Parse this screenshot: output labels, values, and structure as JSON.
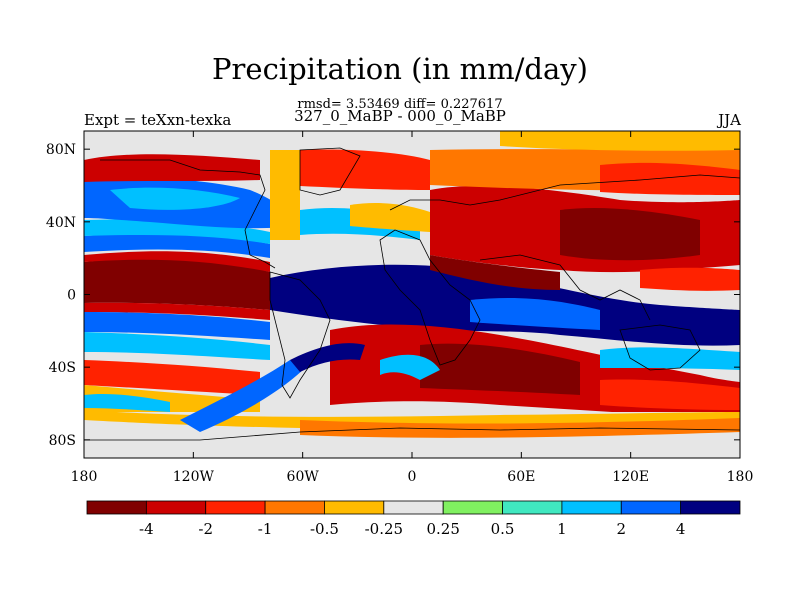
{
  "title": "Precipitation (in mm/day)",
  "subtitle_stats": "rmsd= 3.53469 diff= 0.227617",
  "subtitle_runs": "327_0_MaBP - 000_0_MaBP",
  "left_label": "Expt = teXxn-texka",
  "right_label": "JJA",
  "map": {
    "lon_range": [
      -180,
      180
    ],
    "lat_range": [
      -90,
      90
    ],
    "x_ticks": [
      {
        "value": -180,
        "label": "180"
      },
      {
        "value": -120,
        "label": "120W"
      },
      {
        "value": -60,
        "label": "60W"
      },
      {
        "value": 0,
        "label": "0"
      },
      {
        "value": 60,
        "label": "60E"
      },
      {
        "value": 120,
        "label": "120E"
      },
      {
        "value": 180,
        "label": "180"
      }
    ],
    "y_ticks": [
      {
        "value": 80,
        "label": "80N"
      },
      {
        "value": 40,
        "label": "40N"
      },
      {
        "value": 0,
        "label": "0"
      },
      {
        "value": -40,
        "label": "40S"
      },
      {
        "value": -80,
        "label": "80S"
      }
    ]
  },
  "colorbar": {
    "colors": [
      "#800000",
      "#cc0000",
      "#ff2200",
      "#ff7700",
      "#ffbb00",
      "#e6e6e6",
      "#80f060",
      "#40e8c0",
      "#00c0ff",
      "#0066ff",
      "#000080"
    ],
    "labels": [
      "-4",
      "-2",
      "-1",
      "-0.5",
      "-0.25",
      "0.25",
      "0.5",
      "1",
      "2",
      "4"
    ]
  }
}
